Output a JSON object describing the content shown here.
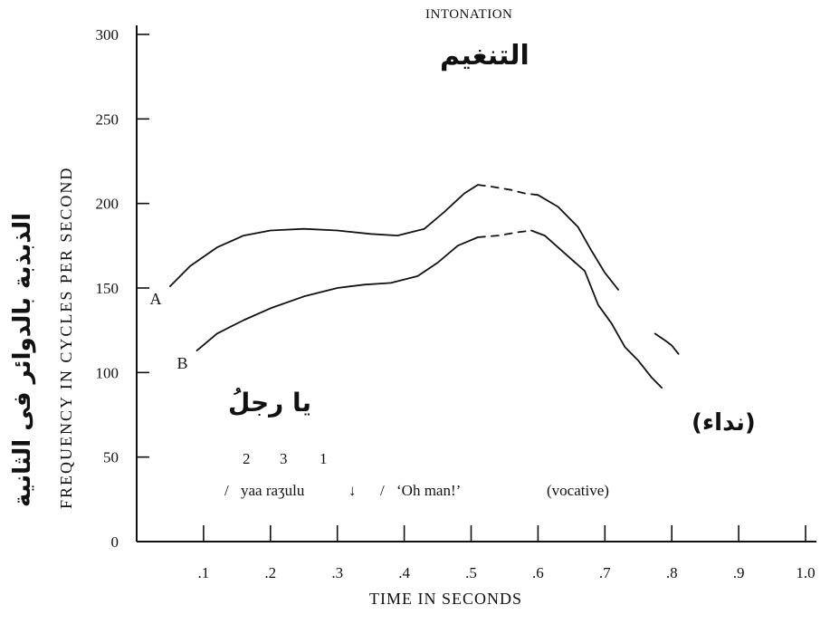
{
  "chart_data": {
    "type": "line",
    "title": "INTONATION",
    "title_arabic": "التنغيم",
    "xlabel": "TIME IN SECONDS",
    "ylabel": "FREQUENCY IN CYCLES PER SECOND",
    "ylabel_arabic": "الذبذبة بالدوائر فى الثانية",
    "xlim": [
      0,
      1.0
    ],
    "ylim": [
      0,
      300
    ],
    "x_ticks": [
      0.1,
      0.2,
      0.3,
      0.4,
      0.5,
      0.6,
      0.7,
      0.8,
      0.9,
      1.0
    ],
    "x_tick_labels": [
      ".1",
      ".2",
      ".3",
      ".4",
      ".5",
      ".6",
      ".7",
      ".8",
      ".9",
      "1.0"
    ],
    "y_ticks": [
      0,
      50,
      100,
      150,
      200,
      250,
      300
    ],
    "y_tick_labels": [
      "0",
      "50",
      "100",
      "150",
      "200",
      "250",
      "300"
    ],
    "grid": false,
    "series": [
      {
        "name": "A",
        "segments": [
          {
            "style": "solid",
            "points": [
              [
                0.05,
                151
              ],
              [
                0.08,
                163
              ],
              [
                0.12,
                174
              ],
              [
                0.16,
                181
              ],
              [
                0.2,
                184
              ],
              [
                0.25,
                185
              ],
              [
                0.3,
                184
              ],
              [
                0.35,
                182
              ],
              [
                0.39,
                181
              ],
              [
                0.43,
                185
              ],
              [
                0.46,
                195
              ],
              [
                0.49,
                206
              ],
              [
                0.51,
                211
              ]
            ]
          },
          {
            "style": "dashed",
            "points": [
              [
                0.51,
                211
              ],
              [
                0.53,
                210
              ],
              [
                0.56,
                208
              ],
              [
                0.58,
                206
              ],
              [
                0.6,
                205
              ]
            ]
          },
          {
            "style": "solid",
            "points": [
              [
                0.6,
                205
              ],
              [
                0.63,
                198
              ],
              [
                0.66,
                186
              ],
              [
                0.68,
                172
              ],
              [
                0.7,
                159
              ],
              [
                0.72,
                149
              ]
            ]
          },
          {
            "style": "solid",
            "points": [
              [
                0.775,
                123
              ],
              [
                0.79,
                119
              ],
              [
                0.8,
                116
              ],
              [
                0.81,
                111
              ]
            ]
          }
        ]
      },
      {
        "name": "B",
        "segments": [
          {
            "style": "solid",
            "points": [
              [
                0.09,
                113
              ],
              [
                0.12,
                123
              ],
              [
                0.16,
                131
              ],
              [
                0.2,
                138
              ],
              [
                0.25,
                145
              ],
              [
                0.3,
                150
              ],
              [
                0.34,
                152
              ],
              [
                0.38,
                153
              ],
              [
                0.42,
                157
              ],
              [
                0.45,
                165
              ],
              [
                0.48,
                175
              ],
              [
                0.51,
                180
              ]
            ]
          },
          {
            "style": "dashed",
            "points": [
              [
                0.51,
                180
              ],
              [
                0.54,
                181
              ],
              [
                0.57,
                183
              ],
              [
                0.59,
                184
              ]
            ]
          },
          {
            "style": "solid",
            "points": [
              [
                0.59,
                184
              ],
              [
                0.61,
                181
              ],
              [
                0.63,
                174
              ],
              [
                0.65,
                167
              ],
              [
                0.67,
                160
              ],
              [
                0.69,
                140
              ],
              [
                0.71,
                129
              ],
              [
                0.73,
                115
              ],
              [
                0.75,
                107
              ],
              [
                0.77,
                97
              ],
              [
                0.785,
                91
              ]
            ]
          }
        ]
      }
    ],
    "annotations": {
      "utterance_arabic": "يا رجلُ",
      "stress_numbers": [
        "2",
        "3",
        "1"
      ],
      "slash_left": "/",
      "transliteration": "yaa raʒulu",
      "falling_arrow": "↓",
      "slash_mid": "/",
      "translation": "‘Oh man!’",
      "type_english": "(vocative)",
      "type_arabic": "(نداء)"
    }
  }
}
